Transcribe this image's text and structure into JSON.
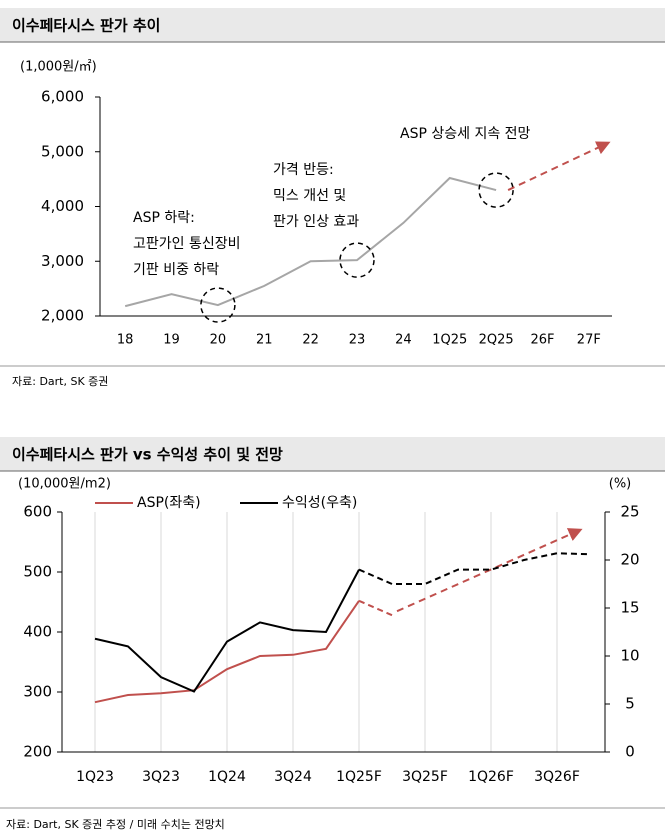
{
  "chart_data": [
    {
      "type": "line",
      "title": "이수페타시스 판가 추이",
      "unit_label": "(1,000원/㎡)",
      "categories": [
        "18",
        "19",
        "20",
        "21",
        "22",
        "23",
        "24",
        "1Q25",
        "2Q25",
        "26F",
        "27F"
      ],
      "values": [
        2180,
        2400,
        2200,
        2550,
        3000,
        3020,
        3700,
        4520,
        4300,
        null,
        null
      ],
      "color": "#a6a6a6",
      "ylim": [
        2000,
        6000
      ],
      "yticks": [
        {
          "value": 2000,
          "label": "2,000"
        },
        {
          "value": 3000,
          "label": "3,000"
        },
        {
          "value": 4000,
          "label": "4,000"
        },
        {
          "value": 5000,
          "label": "5,000"
        },
        {
          "value": 6000,
          "label": "6,000"
        }
      ],
      "annotations": [
        [
          "ASP 하락:",
          "고판가인 통신장비",
          "기판 비중 하락"
        ],
        [
          "가격 반등:",
          "믹스 개선 및",
          "판가 인상 효과"
        ]
      ],
      "forecast_label": "ASP 상승세 지속 전망",
      "source": "자료: Dart, SK 증권"
    },
    {
      "type": "line",
      "title": "이수페타시스 판가 vs 수익성 추이 및 전망",
      "unit_label": "(10,000원/m2)",
      "y2_unit_label": "(%)",
      "categories": [
        "1Q23",
        null,
        "3Q23",
        null,
        "1Q24",
        null,
        "3Q24",
        null,
        "1Q25F",
        null,
        "3Q25F",
        null,
        "1Q26F",
        null,
        "3Q26F",
        null
      ],
      "series": [
        {
          "name": "ASP(좌축)",
          "color": "#c0504d",
          "values": [
            283,
            295,
            298,
            303,
            338,
            360,
            362,
            372,
            452,
            428,
            null,
            null,
            null,
            null,
            null,
            null
          ]
        },
        {
          "name": "수익성(우축)",
          "color": "#000000",
          "axis": "y2",
          "values": [
            11.8,
            11.0,
            7.8,
            6.3,
            11.5,
            13.5,
            12.7,
            12.5,
            19.0,
            17.5,
            17.5,
            19.0,
            19.0,
            20.0,
            20.7,
            20.6
          ]
        }
      ],
      "forecast_start": 8,
      "ylim": [
        200,
        600
      ],
      "yticks": [
        200,
        300,
        400,
        500,
        600
      ],
      "y2lim": [
        0,
        25
      ],
      "y2ticks": [
        0,
        5,
        10,
        15,
        20,
        25
      ],
      "source": "자료: Dart, SK 증권 추정 /  미래 수치는 전망치"
    }
  ]
}
